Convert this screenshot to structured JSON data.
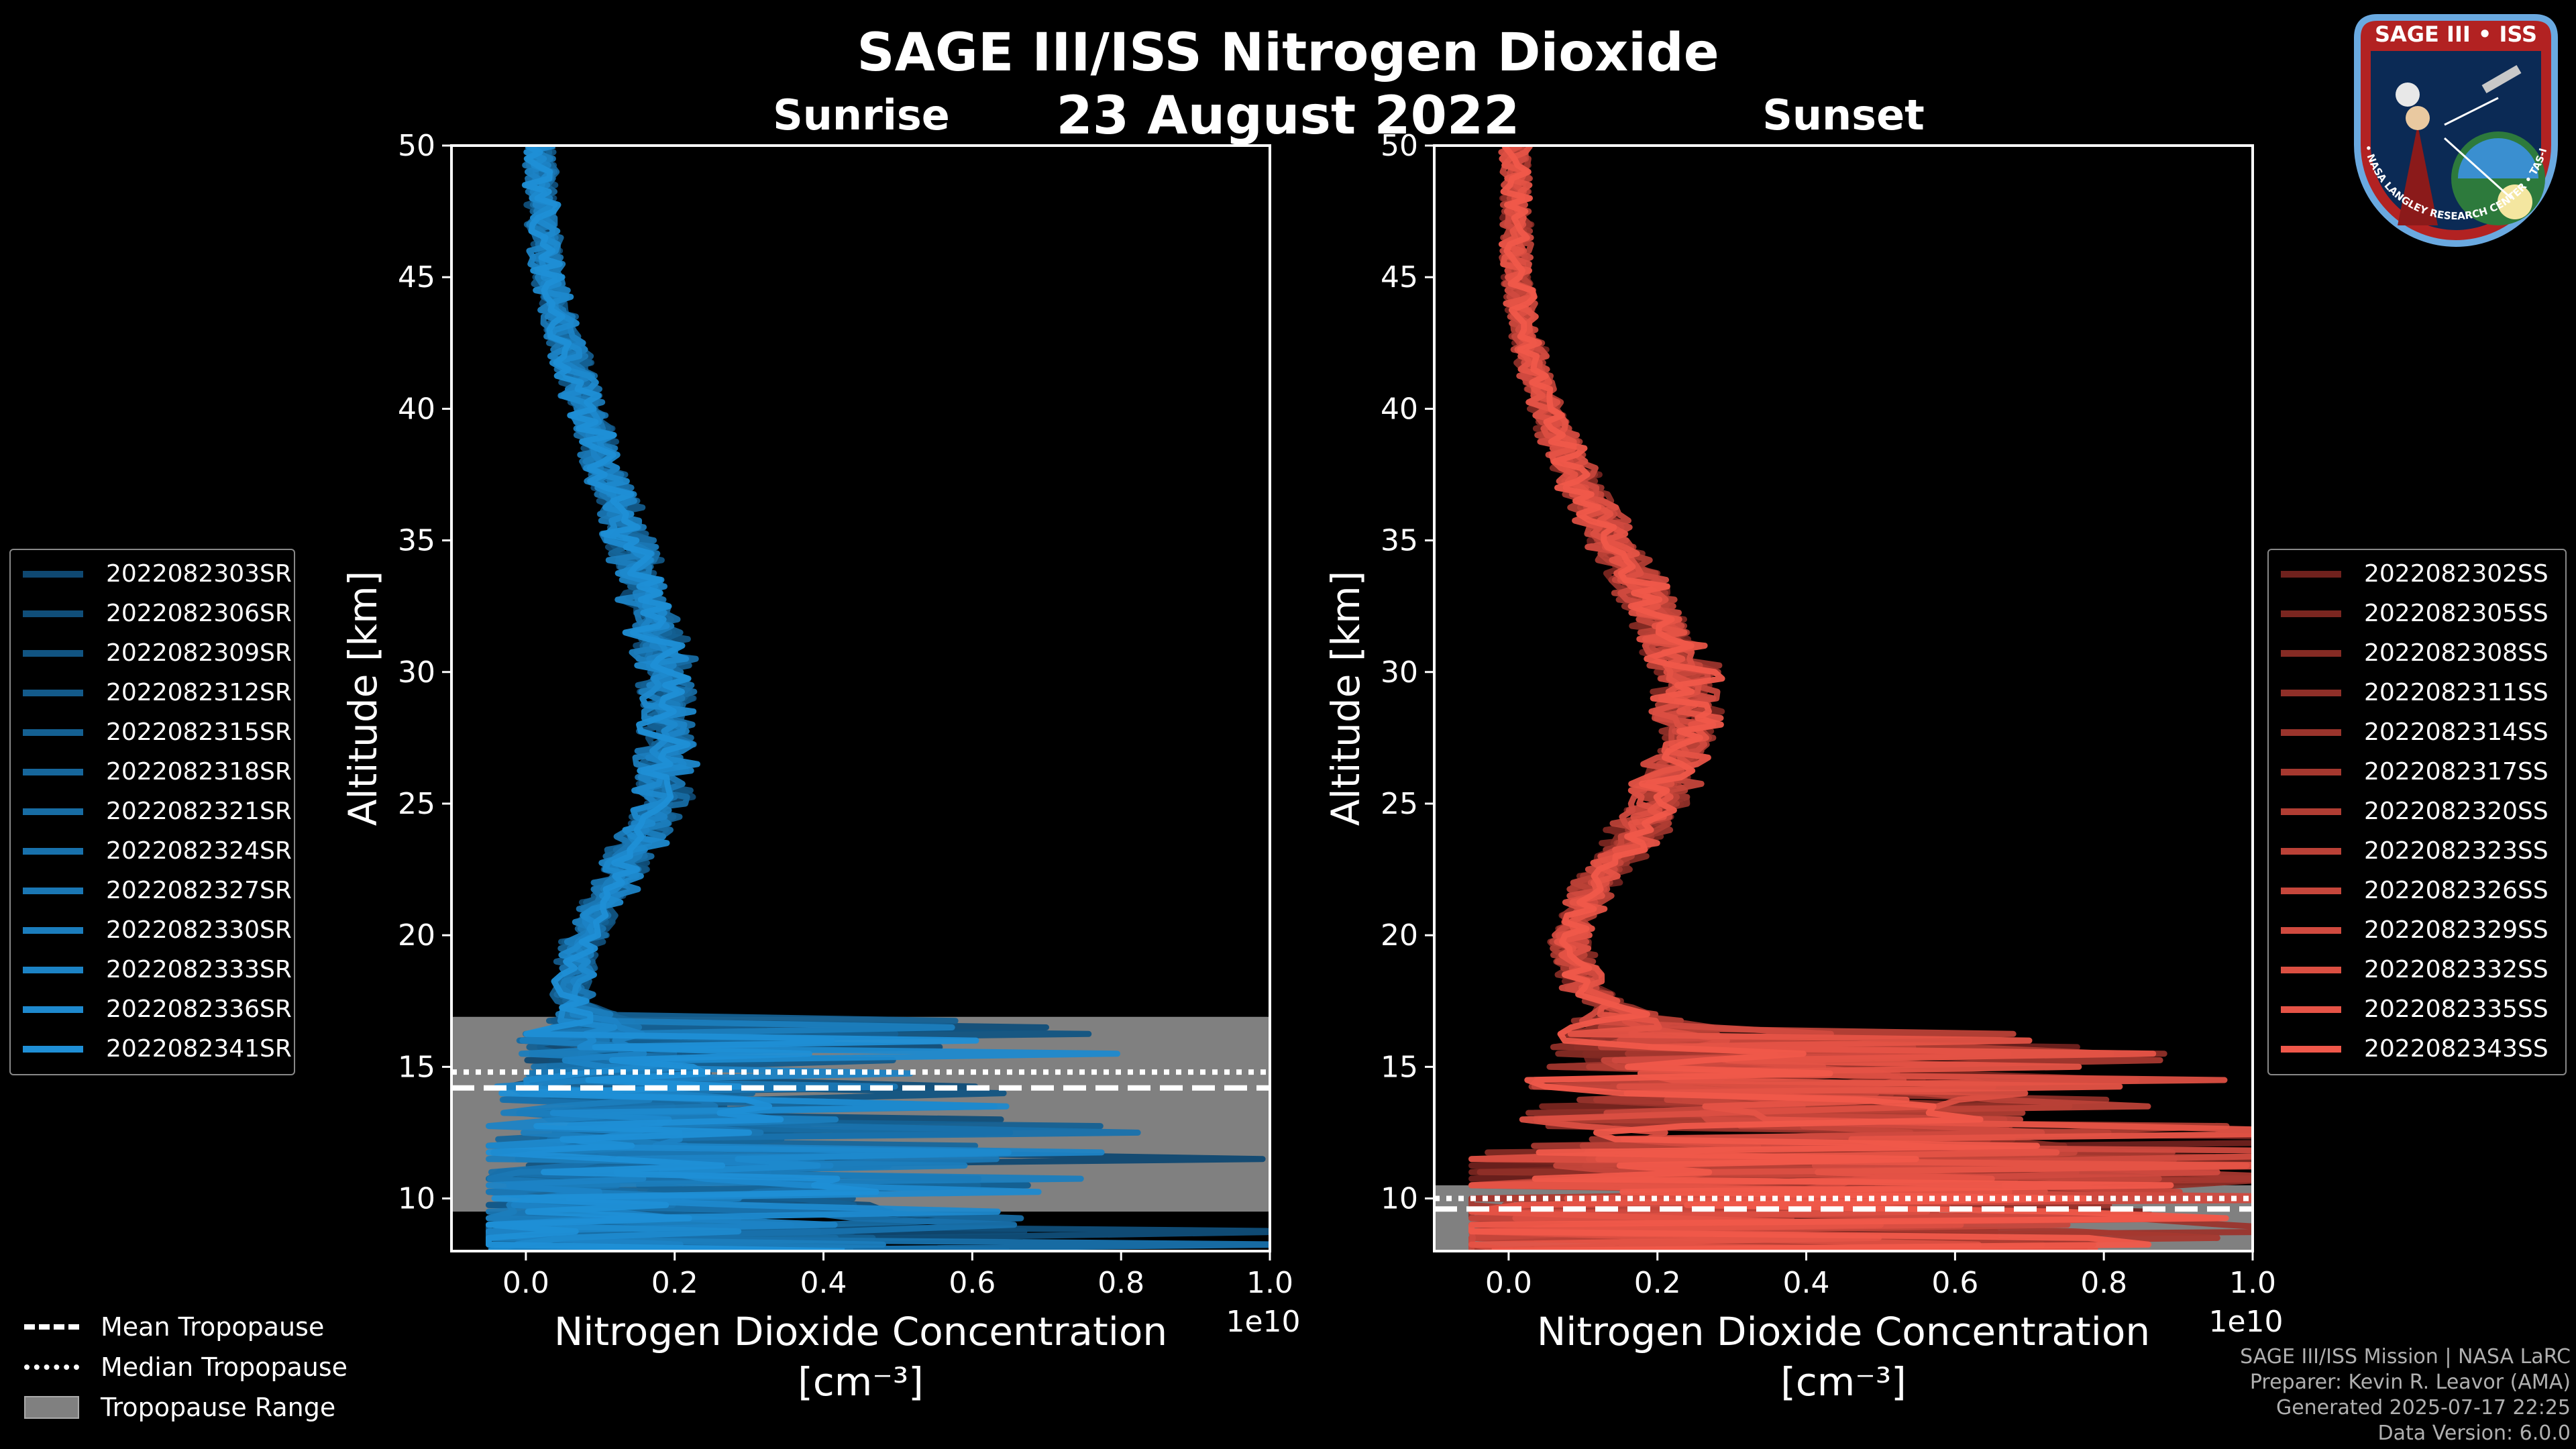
{
  "title": "SAGE III/ISS Nitrogen Dioxide",
  "date": "23 August 2022",
  "colors": {
    "sunrise": "#1f8fd6",
    "sunset": "#f0584a",
    "tropopause_range": "#808080",
    "background": "#000000"
  },
  "chart_data": [
    {
      "type": "line",
      "panel": "Sunrise",
      "title": "Sunrise",
      "xlabel": "Nitrogen Dioxide Concentration",
      "xlabel_units": "[cm⁻³]",
      "ylabel": "Altitude [km]",
      "x_scale_label": "1e10",
      "xlim": [
        -0.1,
        1.0
      ],
      "ylim": [
        8,
        50
      ],
      "xticks": [
        "0.0",
        "0.2",
        "0.4",
        "0.6",
        "0.8",
        "1.0"
      ],
      "yticks": [
        "10",
        "15",
        "20",
        "25",
        "30",
        "35",
        "40",
        "45",
        "50"
      ],
      "tropopause": {
        "mean_km": 14.2,
        "median_km": 14.8,
        "range_km": [
          9.5,
          16.9
        ]
      },
      "profile_shape": {
        "altitude_km": [
          8,
          10,
          12,
          14,
          16,
          18,
          20,
          22,
          25,
          28,
          30,
          33,
          35,
          38,
          40,
          43,
          45,
          48,
          50
        ],
        "mean_no2_1e10": [
          0.12,
          0.16,
          0.17,
          0.13,
          0.09,
          0.06,
          0.08,
          0.12,
          0.18,
          0.19,
          0.19,
          0.16,
          0.14,
          0.1,
          0.08,
          0.05,
          0.03,
          0.02,
          0.02
        ]
      },
      "legend_position": "left",
      "series": [
        {
          "name": "2022082303SR"
        },
        {
          "name": "2022082306SR"
        },
        {
          "name": "2022082309SR"
        },
        {
          "name": "2022082312SR"
        },
        {
          "name": "2022082315SR"
        },
        {
          "name": "2022082318SR"
        },
        {
          "name": "2022082321SR"
        },
        {
          "name": "2022082324SR"
        },
        {
          "name": "2022082327SR"
        },
        {
          "name": "2022082330SR"
        },
        {
          "name": "2022082333SR"
        },
        {
          "name": "2022082336SR"
        },
        {
          "name": "2022082341SR"
        }
      ]
    },
    {
      "type": "line",
      "panel": "Sunset",
      "title": "Sunset",
      "xlabel": "Nitrogen Dioxide Concentration",
      "xlabel_units": "[cm⁻³]",
      "ylabel": "Altitude [km]",
      "x_scale_label": "1e10",
      "xlim": [
        -0.1,
        1.0
      ],
      "ylim": [
        8,
        50
      ],
      "xticks": [
        "0.0",
        "0.2",
        "0.4",
        "0.6",
        "0.8",
        "1.0"
      ],
      "yticks": [
        "10",
        "15",
        "20",
        "25",
        "30",
        "35",
        "40",
        "45",
        "50"
      ],
      "tropopause": {
        "mean_km": 9.6,
        "median_km": 10.0,
        "range_km": [
          8.0,
          10.5
        ]
      },
      "profile_shape": {
        "altitude_km": [
          8,
          10,
          12,
          14,
          16,
          18,
          20,
          22,
          25,
          28,
          30,
          33,
          35,
          38,
          40,
          43,
          45,
          48,
          50
        ],
        "mean_no2_1e10": [
          0.05,
          0.3,
          0.45,
          0.3,
          0.2,
          0.1,
          0.08,
          0.12,
          0.2,
          0.24,
          0.24,
          0.18,
          0.14,
          0.08,
          0.05,
          0.02,
          0.01,
          0.01,
          0.01
        ]
      },
      "legend_position": "right",
      "series": [
        {
          "name": "2022082302SS"
        },
        {
          "name": "2022082305SS"
        },
        {
          "name": "2022082308SS"
        },
        {
          "name": "2022082311SS"
        },
        {
          "name": "2022082314SS"
        },
        {
          "name": "2022082317SS"
        },
        {
          "name": "2022082320SS"
        },
        {
          "name": "2022082323SS"
        },
        {
          "name": "2022082326SS"
        },
        {
          "name": "2022082329SS"
        },
        {
          "name": "2022082332SS"
        },
        {
          "name": "2022082335SS"
        },
        {
          "name": "2022082343SS"
        }
      ]
    }
  ],
  "bottom_legend": {
    "mean": "Mean Tropopause",
    "median": "Median Tropopause",
    "range": "Tropopause Range"
  },
  "footer": {
    "line1": "SAGE III/ISS Mission | NASA LaRC",
    "line2": "Preparer: Kevin R. Leavor (AMA)",
    "line3": "Generated 2025-07-17 22:25",
    "line4": "Data Version: 6.0.0"
  },
  "logo": {
    "text": "SAGE III • ISS",
    "ring_text": "BALL • NASA LANGLEY RESEARCH CENTER • TAS-I • ESA"
  }
}
